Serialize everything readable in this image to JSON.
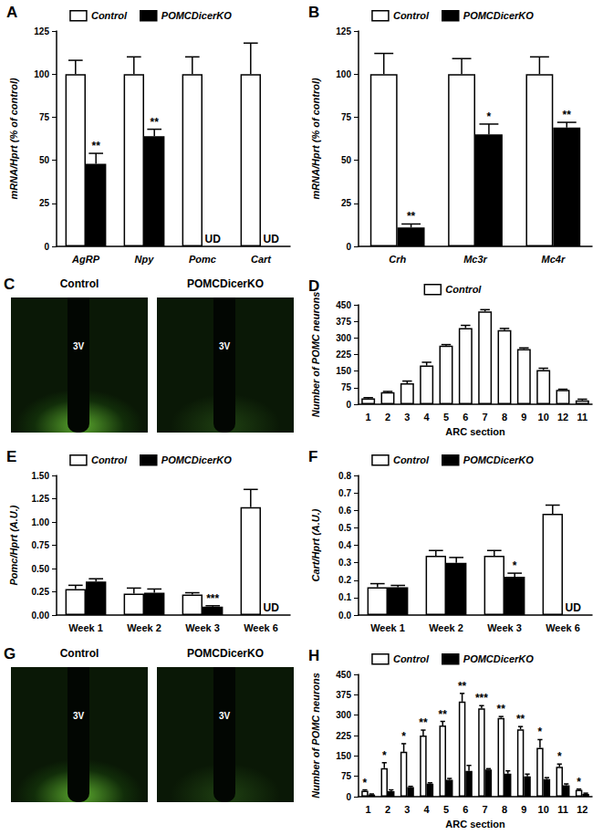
{
  "chart_data": [
    {
      "type": "bar",
      "title": "A",
      "y_label": "mRNA/Hprt (% of control)",
      "categories": [
        "AgRP",
        "Npy",
        "Pomc",
        "Cart"
      ],
      "series": [
        {
          "name": "Control",
          "color": "#ffffff",
          "values": [
            100,
            100,
            100,
            100
          ],
          "errors": [
            8,
            10,
            10,
            18
          ]
        },
        {
          "name": "POMCDicerKO",
          "color": "#000000",
          "values": [
            48,
            64,
            null,
            null
          ],
          "errors": [
            6,
            4,
            null,
            null
          ]
        }
      ],
      "annotations": [
        {
          "category": "AgRP",
          "series": "POMCDicerKO",
          "text": "**"
        },
        {
          "category": "Npy",
          "series": "POMCDicerKO",
          "text": "**"
        },
        {
          "category": "Pomc",
          "series": "POMCDicerKO",
          "text": "UD"
        },
        {
          "category": "Cart",
          "series": "POMCDicerKO",
          "text": "UD"
        }
      ],
      "ylim": [
        0,
        125
      ],
      "yticks": [
        0,
        25,
        50,
        75,
        100,
        125
      ],
      "grid": false,
      "legend": "top"
    },
    {
      "type": "bar",
      "title": "B",
      "y_label": "mRNA/Hprt (% of control)",
      "categories": [
        "Crh",
        "Mc3r",
        "Mc4r"
      ],
      "series": [
        {
          "name": "Control",
          "color": "#ffffff",
          "values": [
            100,
            100,
            100
          ],
          "errors": [
            12,
            9,
            10
          ]
        },
        {
          "name": "POMCDicerKO",
          "color": "#000000",
          "values": [
            11,
            65,
            69
          ],
          "errors": [
            2,
            6,
            3
          ]
        }
      ],
      "annotations": [
        {
          "category": "Crh",
          "series": "POMCDicerKO",
          "text": "**"
        },
        {
          "category": "Mc3r",
          "series": "POMCDicerKO",
          "text": "*"
        },
        {
          "category": "Mc4r",
          "series": "POMCDicerKO",
          "text": "**"
        }
      ],
      "ylim": [
        0,
        125
      ],
      "yticks": [
        0,
        25,
        50,
        75,
        100,
        125
      ],
      "grid": false,
      "legend": "top"
    },
    {
      "type": "bar",
      "title": "D",
      "y_label": "Number of POMC neurons",
      "x_label": "ARC section",
      "categories": [
        "1",
        "2",
        "3",
        "4",
        "5",
        "6",
        "7",
        "8",
        "9",
        "10",
        "12",
        "11"
      ],
      "series": [
        {
          "name": "Control",
          "color": "#ffffff",
          "values": [
            27,
            55,
            95,
            175,
            265,
            345,
            420,
            335,
            250,
            155,
            65,
            18
          ],
          "errors": [
            3,
            3,
            10,
            15,
            5,
            12,
            8,
            8,
            5,
            8,
            3,
            5
          ]
        }
      ],
      "annotations": [],
      "ylim": [
        0,
        450
      ],
      "yticks": [
        0,
        75,
        150,
        225,
        300,
        375,
        450
      ],
      "grid": false,
      "legend": "top"
    },
    {
      "type": "bar",
      "title": "E",
      "y_label": "Pomc/Hprt (A.U.)",
      "categories": [
        "Week 1",
        "Week 2",
        "Week 3",
        "Week 6"
      ],
      "series": [
        {
          "name": "Control",
          "color": "#ffffff",
          "values": [
            0.28,
            0.23,
            0.22,
            1.16
          ],
          "errors": [
            0.04,
            0.06,
            0.02,
            0.19
          ]
        },
        {
          "name": "POMCDicerKO",
          "color": "#000000",
          "values": [
            0.36,
            0.24,
            0.09,
            null
          ],
          "errors": [
            0.03,
            0.04,
            0.01,
            null
          ]
        }
      ],
      "annotations": [
        {
          "category": "Week 3",
          "series": "POMCDicerKO",
          "text": "***"
        },
        {
          "category": "Week 6",
          "series": "POMCDicerKO",
          "text": "UD"
        }
      ],
      "ylim": [
        0,
        1.5
      ],
      "yticks": [
        {
          "value": 0,
          "label": "0.00"
        },
        {
          "value": 0.25,
          "label": "0.25"
        },
        {
          "value": 0.5,
          "label": "0.50"
        },
        {
          "value": 0.75,
          "label": "0.75"
        },
        {
          "value": 1,
          "label": "1.00"
        },
        {
          "value": 1.25,
          "label": "1.25"
        },
        {
          "value": 1.5,
          "label": "1.50"
        }
      ],
      "grid": false,
      "legend": "top"
    },
    {
      "type": "bar",
      "title": "F",
      "y_label": "Cart/Hprt (A.U.)",
      "categories": [
        "Week 1",
        "Week 2",
        "Week 3",
        "Week 6"
      ],
      "series": [
        {
          "name": "Control",
          "color": "#ffffff",
          "values": [
            0.16,
            0.34,
            0.34,
            0.58
          ],
          "errors": [
            0.02,
            0.03,
            0.03,
            0.05
          ]
        },
        {
          "name": "POMCDicerKO",
          "color": "#000000",
          "values": [
            0.16,
            0.3,
            0.22,
            null
          ],
          "errors": [
            0.01,
            0.03,
            0.02,
            null
          ]
        }
      ],
      "annotations": [
        {
          "category": "Week 3",
          "series": "POMCDicerKO",
          "text": "*"
        },
        {
          "category": "Week 6",
          "series": "POMCDicerKO",
          "text": "UD"
        }
      ],
      "ylim": [
        0,
        0.8
      ],
      "yticks": [
        {
          "value": 0,
          "label": "0.0"
        },
        {
          "value": 0.1,
          "label": "0.1"
        },
        {
          "value": 0.2,
          "label": "0.2"
        },
        {
          "value": 0.3,
          "label": "0.3"
        },
        {
          "value": 0.4,
          "label": "0.4"
        },
        {
          "value": 0.5,
          "label": "0.5"
        },
        {
          "value": 0.6,
          "label": "0.6"
        },
        {
          "value": 0.7,
          "label": "0.7"
        },
        {
          "value": 0.8,
          "label": "0.8"
        }
      ],
      "grid": false,
      "legend": "top"
    },
    {
      "type": "bar",
      "title": "H",
      "y_label": "Number of POMC neurons",
      "x_label": "ARC section",
      "categories": [
        "1",
        "2",
        "3",
        "4",
        "5",
        "6",
        "7",
        "8",
        "9",
        "10",
        "11",
        "12"
      ],
      "series": [
        {
          "name": "Control",
          "color": "#ffffff",
          "values": [
            22,
            105,
            165,
            225,
            262,
            350,
            325,
            290,
            248,
            180,
            110,
            25
          ],
          "errors": [
            3,
            20,
            30,
            20,
            15,
            30,
            10,
            5,
            10,
            30,
            10,
            3
          ]
        },
        {
          "name": "POMCDicerKO",
          "color": "#000000",
          "values": [
            8,
            20,
            35,
            48,
            62,
            95,
            100,
            85,
            75,
            65,
            42,
            10
          ],
          "errors": [
            2,
            5,
            3,
            3,
            5,
            20,
            3,
            10,
            8,
            5,
            5,
            3
          ]
        }
      ],
      "annotations": [
        {
          "category": "1",
          "series": "Control",
          "text": "*"
        },
        {
          "category": "2",
          "series": "Control",
          "text": "*"
        },
        {
          "category": "3",
          "series": "Control",
          "text": "*"
        },
        {
          "category": "4",
          "series": "Control",
          "text": "**"
        },
        {
          "category": "5",
          "series": "Control",
          "text": "**"
        },
        {
          "category": "6",
          "series": "Control",
          "text": "**"
        },
        {
          "category": "7",
          "series": "Control",
          "text": "***"
        },
        {
          "category": "8",
          "series": "Control",
          "text": "**"
        },
        {
          "category": "9",
          "series": "Control",
          "text": "**"
        },
        {
          "category": "10",
          "series": "Control",
          "text": "*"
        },
        {
          "category": "11",
          "series": "Control",
          "text": "*"
        },
        {
          "category": "12",
          "series": "Control",
          "text": "*"
        }
      ],
      "ylim": [
        0,
        450
      ],
      "yticks": [
        0,
        75,
        150,
        225,
        300,
        375,
        450
      ],
      "grid": false,
      "legend": "top"
    }
  ],
  "micrographs": [
    {
      "title": "C",
      "images": [
        {
          "label": "Control",
          "landmark": "3V"
        },
        {
          "label": "POMCDicerKO",
          "landmark": "3V"
        }
      ]
    },
    {
      "title": "G",
      "images": [
        {
          "label": "Control",
          "landmark": "3V"
        },
        {
          "label": "POMCDicerKO",
          "landmark": "3V"
        }
      ]
    }
  ]
}
